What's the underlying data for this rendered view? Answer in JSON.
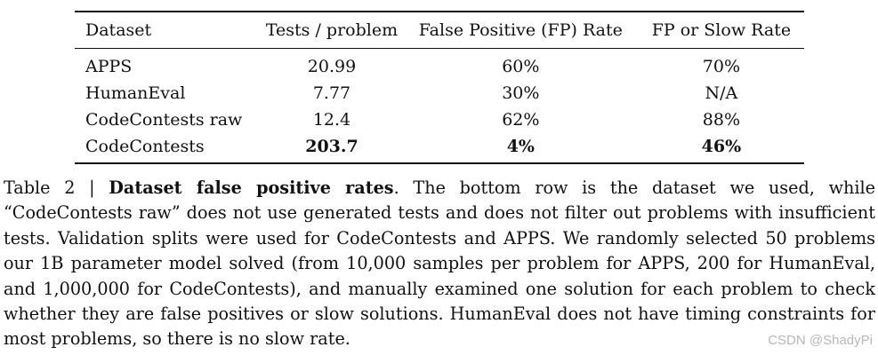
{
  "table": {
    "headers": [
      "Dataset",
      "Tests / problem",
      "False Positive (FP) Rate",
      "FP or Slow Rate"
    ],
    "rows": [
      [
        "APPS",
        "20.99",
        "60%",
        "70%"
      ],
      [
        "HumanEval",
        "7.77",
        "30%",
        "N/A"
      ],
      [
        "CodeContests raw",
        "12.4",
        "62%",
        "88%"
      ],
      [
        "CodeContests",
        "203.7",
        "4%",
        "46%"
      ]
    ]
  },
  "caption": {
    "label": "Table 2 | ",
    "title": "Dataset false positive rates",
    "text": ". The bottom row is the dataset we used, while “CodeContests raw” does not use generated tests and does not filter out problems with insufficient tests. Validation splits were used for CodeContests and APPS. We randomly selected 50 problems our 1B parameter model solved (from 10,000 samples per problem for APPS, 200 for HumanEval, and 1,000,000 for CodeContests), and manually examined one solution for each problem to check whether they are false positives or slow solutions. HumanEval does not have timing constraints for most problems, so there is no slow rate."
  },
  "watermark": "CSDN @ShadyPi"
}
